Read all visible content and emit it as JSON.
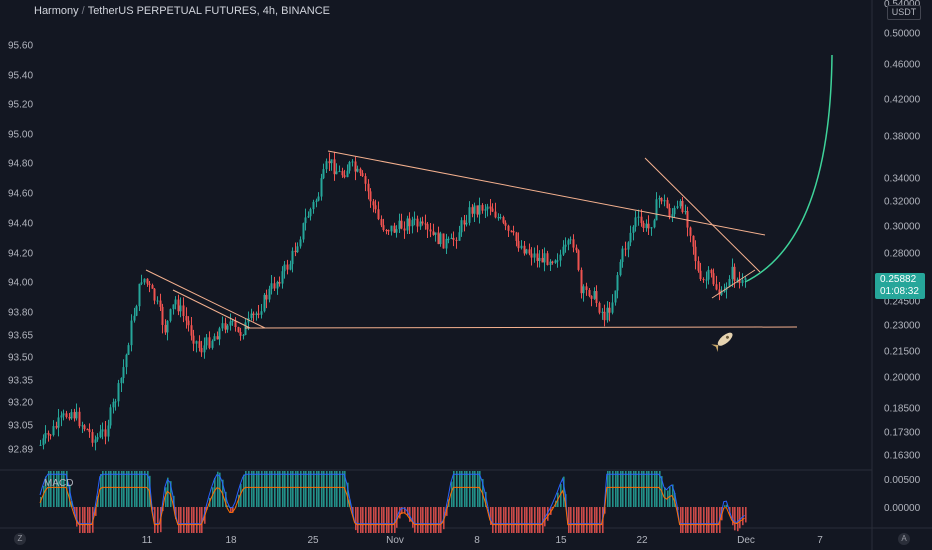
{
  "header": {
    "symbol": "Harmony",
    "quote": "TetherUS PERPETUAL FUTURES",
    "interval": "4h",
    "exchange": "BINANCE"
  },
  "left_axis": {
    "ticks": [
      "95.60",
      "95.40",
      "95.20",
      "95.00",
      "94.80",
      "94.60",
      "94.40",
      "94.20",
      "94.00",
      "93.80",
      "93.65",
      "93.50",
      "93.35",
      "93.20",
      "93.05",
      "92.89"
    ]
  },
  "right_axis": {
    "unit": "USDT",
    "top_partial": "0.54000",
    "ticks": [
      "0.50000",
      "0.46000",
      "0.42000",
      "0.38000",
      "0.34000",
      "0.32000",
      "0.30000",
      "0.28000",
      "0.24500",
      "0.23000",
      "0.21500",
      "0.20000",
      "0.18500",
      "0.17300",
      "0.16300"
    ],
    "last_price": "0.25882",
    "countdown": "01:08:32"
  },
  "macd": {
    "label": "MACD",
    "ticks": [
      "0.00500",
      "0.00000"
    ]
  },
  "time_axis": {
    "ticks": [
      "11",
      "18",
      "25",
      "Nov",
      "8",
      "15",
      "22",
      "Dec",
      "7"
    ]
  },
  "corner_buttons": {
    "left": "Z",
    "right": "A"
  },
  "colors": {
    "up": "#26a69a",
    "down": "#ef5350",
    "trendline": "#f5b18f",
    "projection": "#3ed39a",
    "background": "#131722"
  }
}
